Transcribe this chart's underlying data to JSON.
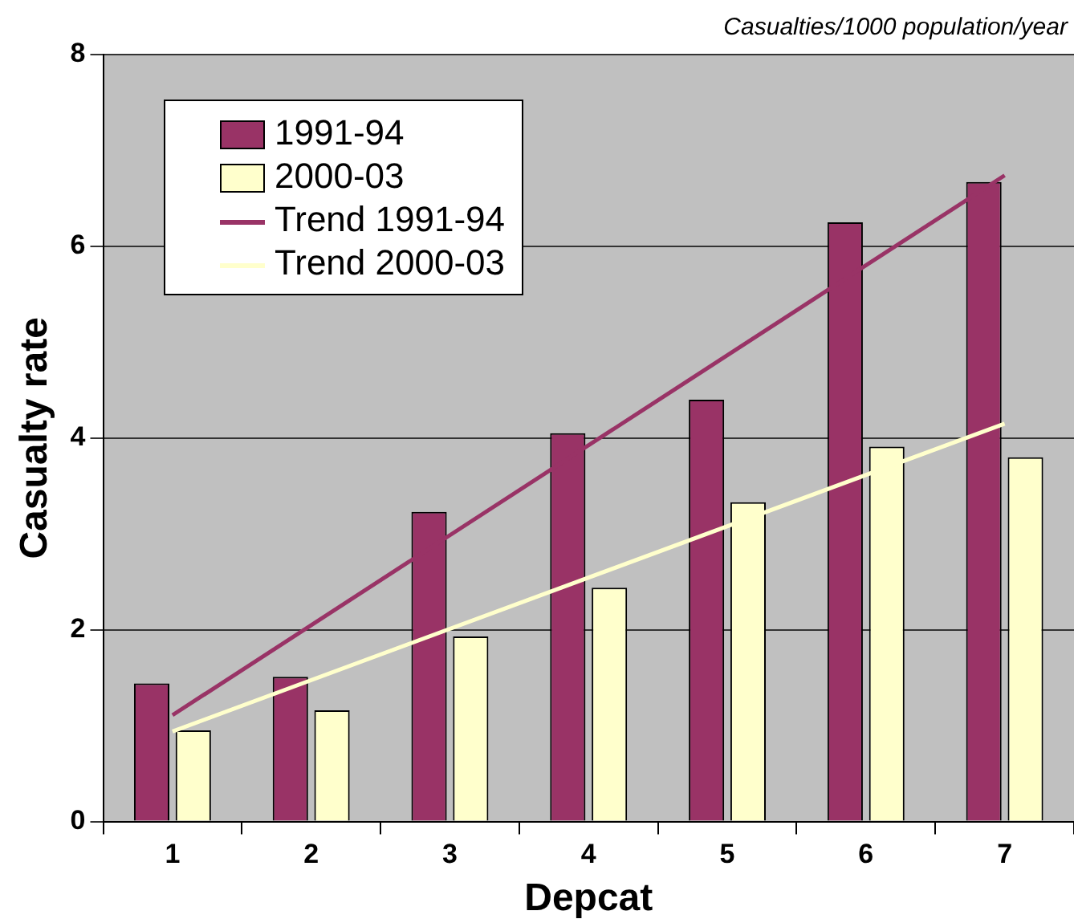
{
  "chart_data": {
    "type": "bar",
    "xlabel": "Depcat",
    "ylabel": "Casualty rate",
    "annotations": [
      "Casualties/1000 population/year"
    ],
    "categories": [
      "1",
      "2",
      "3",
      "4",
      "5",
      "6",
      "7"
    ],
    "series": [
      {
        "name": "1991-94",
        "color": "#993366",
        "values": [
          1.44,
          1.51,
          3.23,
          4.05,
          4.4,
          6.25,
          6.67
        ]
      },
      {
        "name": "2000-03",
        "color": "#ffffcc",
        "values": [
          0.95,
          1.16,
          1.93,
          2.44,
          3.33,
          3.91,
          3.8
        ]
      },
      {
        "name": "Trend 1991-94",
        "type": "line",
        "color": "#993366",
        "values": [
          1.11,
          null,
          null,
          null,
          null,
          null,
          6.74
        ]
      },
      {
        "name": "Trend 2000-03",
        "type": "line",
        "color": "#ffffcc",
        "values": [
          0.94,
          null,
          null,
          null,
          null,
          null,
          4.15
        ]
      }
    ],
    "ylim": [
      0,
      8
    ],
    "yticks": [
      0,
      2,
      4,
      6,
      8
    ],
    "grid": "y",
    "legend": "top left",
    "marker": "none",
    "line_style": "solid"
  }
}
